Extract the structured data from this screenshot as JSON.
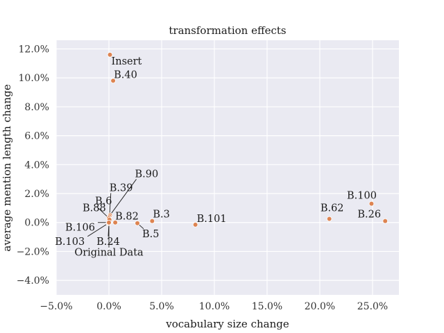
{
  "chart_data": {
    "type": "scatter",
    "title": "transformation effects",
    "xlabel": "vocabulary size change",
    "ylabel": "average mention length change",
    "xlim": [
      -5.0,
      27.5
    ],
    "ylim": [
      -5.0,
      12.6
    ],
    "xticks": [
      -5,
      0,
      5,
      10,
      15,
      20,
      25
    ],
    "yticks": [
      -4,
      -2,
      0,
      2,
      4,
      6,
      8,
      10,
      12
    ],
    "xtick_labels": [
      "−5.0%",
      "0.0%",
      "5.0%",
      "10.0%",
      "15.0%",
      "20.0%",
      "25.0%"
    ],
    "ytick_labels": [
      "−4.0%",
      "−2.0%",
      "0.0%",
      "2.0%",
      "4.0%",
      "6.0%",
      "8.0%",
      "10.0%",
      "12.0%"
    ],
    "grid": true,
    "point_color": "#dd8452",
    "background_color": "#eaeaf2",
    "points": [
      {
        "label": "Insert",
        "x": 0.1,
        "y": 11.6
      },
      {
        "label": "B.40",
        "x": 0.4,
        "y": 9.8
      },
      {
        "label": "B.90",
        "x": 0.1,
        "y": 0.5
      },
      {
        "label": "B.39",
        "x": 0.05,
        "y": 0.4
      },
      {
        "label": "B.6",
        "x": 0.0,
        "y": 0.3
      },
      {
        "label": "B.88",
        "x": 0.05,
        "y": 0.2
      },
      {
        "label": "B.82",
        "x": 0.6,
        "y": 0.0
      },
      {
        "label": "B.106",
        "x": 0.0,
        "y": 0.0
      },
      {
        "label": "B.103",
        "x": -0.05,
        "y": -0.05
      },
      {
        "label": "B.24",
        "x": 0.0,
        "y": -0.05
      },
      {
        "label": "Original Data",
        "x": 0.0,
        "y": 0.0
      },
      {
        "label": "B.3",
        "x": 4.1,
        "y": 0.1
      },
      {
        "label": "B.5",
        "x": 2.7,
        "y": -0.05
      },
      {
        "label": "B.101",
        "x": 8.2,
        "y": -0.15
      },
      {
        "label": "B.62",
        "x": 20.9,
        "y": 0.25
      },
      {
        "label": "B.100",
        "x": 24.9,
        "y": 1.3
      },
      {
        "label": "B.26",
        "x": 26.2,
        "y": 0.1
      }
    ]
  }
}
